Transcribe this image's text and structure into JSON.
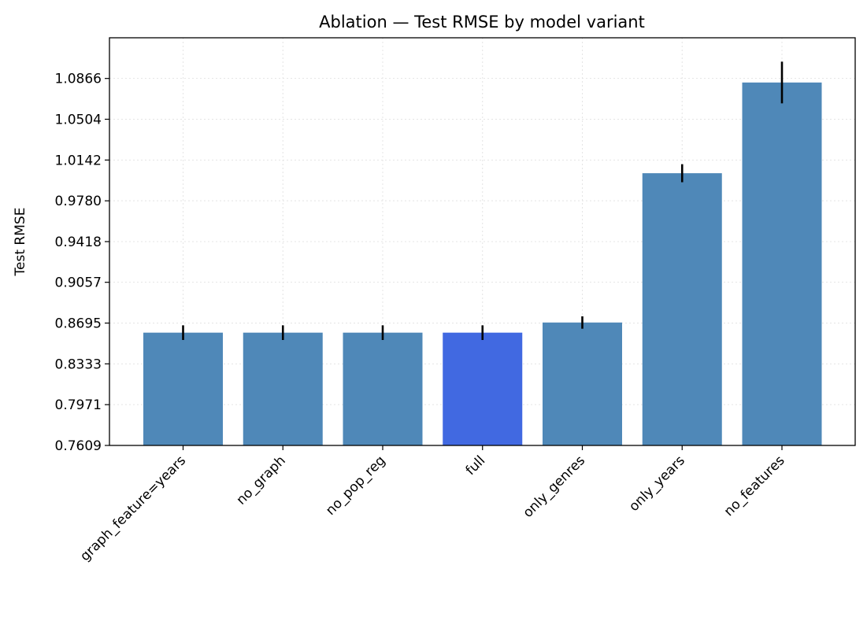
{
  "chart_data": {
    "type": "bar",
    "title": "Ablation — Test RMSE by model variant",
    "xlabel": "",
    "ylabel": "Test RMSE",
    "ylim": [
      0.7609,
      1.1227
    ],
    "yticks": [
      "0.7609",
      "0.7971",
      "0.8333",
      "0.8695",
      "0.9057",
      "0.9418",
      "0.9780",
      "1.0142",
      "1.0504",
      "1.0866"
    ],
    "grid": true,
    "categories": [
      "graph_feature=years",
      "no_graph",
      "no_pop_reg",
      "full",
      "only_genres",
      "only_years",
      "no_features"
    ],
    "values": [
      0.861,
      0.861,
      0.861,
      0.861,
      0.87,
      1.0025,
      1.083
    ],
    "errors": [
      0.0065,
      0.0065,
      0.0065,
      0.0065,
      0.0055,
      0.008,
      0.0185
    ],
    "highlight": "full",
    "colors": {
      "bar": "#4f88b8",
      "highlight": "#4169e1",
      "error": "#000000",
      "grid": "#e4e4e4"
    }
  }
}
